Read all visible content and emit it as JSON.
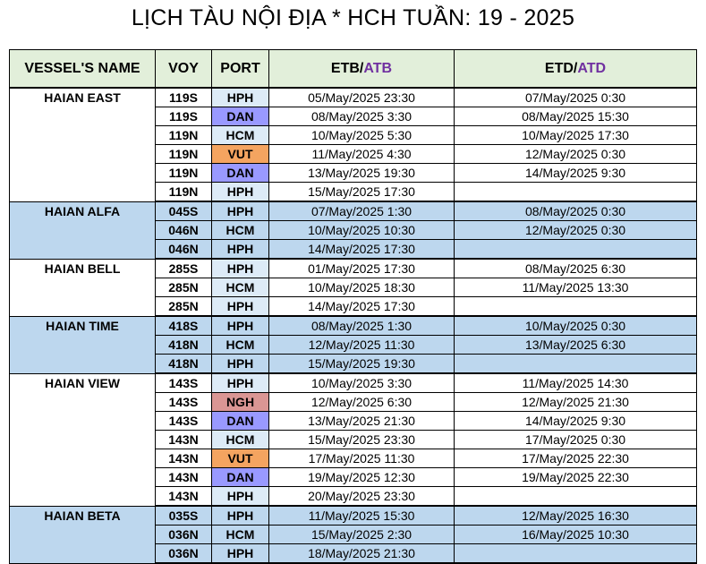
{
  "title": "LỊCH TÀU NỘI ĐỊA * HCH  TUẦN: 19 - 2025",
  "headers": {
    "vessel": "VESSEL'S NAME",
    "voy": "VOY",
    "port": "PORT",
    "etb_a": "ETB/",
    "etb_b": "ATB",
    "etd_a": "ETD/",
    "etd_b": "ATD"
  },
  "colors": {
    "header_bg": "#e2efda",
    "band_bg": "#bdd7ee",
    "port_hph_hcm": "#ddebf7",
    "port_dan": "#9999ff",
    "port_vut": "#f4a460",
    "port_ngh": "#da9694",
    "accent_text": "#7030a0"
  },
  "vessels": [
    {
      "name": "HAIAN EAST",
      "band": false,
      "rows": [
        {
          "voy": "119S",
          "port": "HPH",
          "etb": "05/May/2025 23:30",
          "etd": "07/May/2025 0:30"
        },
        {
          "voy": "119S",
          "port": "DAN",
          "etb": "08/May/2025 3:30",
          "etd": "08/May/2025 15:30"
        },
        {
          "voy": "119N",
          "port": "HCM",
          "etb": "10/May/2025 5:30",
          "etd": "10/May/2025 17:30"
        },
        {
          "voy": "119N",
          "port": "VUT",
          "etb": "11/May/2025 4:30",
          "etd": "12/May/2025 0:30"
        },
        {
          "voy": "119N",
          "port": "DAN",
          "etb": "13/May/2025 19:30",
          "etd": "14/May/2025 9:30"
        },
        {
          "voy": "119N",
          "port": "HPH",
          "etb": "15/May/2025 17:30",
          "etd": ""
        }
      ]
    },
    {
      "name": "HAIAN ALFA",
      "band": true,
      "rows": [
        {
          "voy": "045S",
          "port": "HPH",
          "etb": "07/May/2025 1:30",
          "etd": "08/May/2025 0:30"
        },
        {
          "voy": "046N",
          "port": "HCM",
          "etb": "10/May/2025 10:30",
          "etd": "12/May/2025 0:30"
        },
        {
          "voy": "046N",
          "port": "HPH",
          "etb": "14/May/2025 17:30",
          "etd": ""
        }
      ]
    },
    {
      "name": "HAIAN BELL",
      "band": false,
      "rows": [
        {
          "voy": "285S",
          "port": "HPH",
          "etb": "01/May/2025 17:30",
          "etd": "08/May/2025 6:30"
        },
        {
          "voy": "285N",
          "port": "HCM",
          "etb": "10/May/2025 18:30",
          "etd": "11/May/2025 13:30"
        },
        {
          "voy": "285N",
          "port": "HPH",
          "etb": "14/May/2025 17:30",
          "etd": ""
        }
      ]
    },
    {
      "name": "HAIAN TIME",
      "band": true,
      "rows": [
        {
          "voy": "418S",
          "port": "HPH",
          "etb": "08/May/2025 1:30",
          "etd": "10/May/2025 0:30"
        },
        {
          "voy": "418N",
          "port": "HCM",
          "etb": "12/May/2025 11:30",
          "etd": "13/May/2025 6:30"
        },
        {
          "voy": "418N",
          "port": "HPH",
          "etb": "15/May/2025 19:30",
          "etd": ""
        }
      ]
    },
    {
      "name": "HAIAN VIEW",
      "band": false,
      "rows": [
        {
          "voy": "143S",
          "port": "HPH",
          "etb": "10/May/2025 3:30",
          "etd": "11/May/2025 14:30"
        },
        {
          "voy": "143S",
          "port": "NGH",
          "etb": "12/May/2025 6:30",
          "etd": "12/May/2025 21:30"
        },
        {
          "voy": "143S",
          "port": "DAN",
          "etb": "13/May/2025 21:30",
          "etd": "14/May/2025 9:30"
        },
        {
          "voy": "143N",
          "port": "HCM",
          "etb": "15/May/2025 23:30",
          "etd": "17/May/2025 0:30"
        },
        {
          "voy": "143N",
          "port": "VUT",
          "etb": "17/May/2025 11:30",
          "etd": "17/May/2025 22:30"
        },
        {
          "voy": "143N",
          "port": "DAN",
          "etb": "19/May/2025 12:30",
          "etd": "19/May/2025 22:30"
        },
        {
          "voy": "143N",
          "port": "HPH",
          "etb": "20/May/2025 23:30",
          "etd": ""
        }
      ]
    },
    {
      "name": "HAIAN BETA",
      "band": true,
      "rows": [
        {
          "voy": "035S",
          "port": "HPH",
          "etb": "11/May/2025 15:30",
          "etd": "12/May/2025 16:30"
        },
        {
          "voy": "036N",
          "port": "HCM",
          "etb": "15/May/2025 2:30",
          "etd": "16/May/2025 10:30"
        },
        {
          "voy": "036N",
          "port": "HPH",
          "etb": "18/May/2025 21:30",
          "etd": ""
        }
      ]
    }
  ]
}
